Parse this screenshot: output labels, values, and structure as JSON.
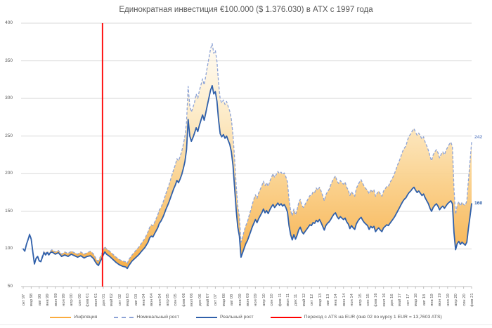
{
  "title": "Единократная инвестиция €100.000 ($ 1.376.030) в ATX с 1997 года",
  "colors": {
    "real_line": "#3060AA",
    "nominal_line": "#8DA3D6",
    "inflation_fill": "#F6A83B",
    "transition_line": "#FF0000",
    "gridline": "#D9D9D9",
    "axis_line": "#BFBFBF",
    "axis_text": "#595959",
    "end_label_nominal": "#7C97CE",
    "end_label_real": "#2E5FA8"
  },
  "chart_data": {
    "type": "line",
    "title": "Единократная инвестиция €100.000 ($ 1.376.030) в ATX с 1997 года",
    "x_unit": "months since Oct 1997",
    "x_range": [
      0,
      280
    ],
    "x_tick_step_months": 5,
    "x_tick_labels": [
      "окт 97",
      "мар 98",
      "авг 98",
      "янв 99",
      "июн 99",
      "ноя 99",
      "апр 00",
      "сен 00",
      "фев 01",
      "июл 01",
      "дек 01",
      "май 02",
      "окт 02",
      "мар 03",
      "авг 03",
      "янв 04",
      "июн 04",
      "ноя 04",
      "апр 05",
      "сен 05",
      "фев 06",
      "июл 06",
      "дек 06",
      "май 07",
      "окт 07",
      "мар 08",
      "авг 08",
      "янв 09",
      "июн 09",
      "ноя 09",
      "апр 10",
      "сен 10",
      "фев 11",
      "июл 11",
      "дек 11",
      "май 12",
      "окт 12",
      "мар 13",
      "авг 13",
      "янв 14",
      "июн 14",
      "ноя 14",
      "апр 15",
      "сен 15",
      "фев 16",
      "июл 16",
      "дек 16",
      "май 17",
      "окт 17",
      "мар 18",
      "авг 18",
      "янв 19",
      "июн 19",
      "ноя 19",
      "апр 20",
      "сен 20",
      "фев 21"
    ],
    "ylim": [
      50,
      400
    ],
    "y_ticks": [
      50,
      100,
      150,
      200,
      250,
      300,
      350,
      400
    ],
    "grid": "horizontal",
    "legend_position": "bottom",
    "series": [
      {
        "name": "Инфляция",
        "type": "area-between-nominal-and-real",
        "color": "#F6A83B",
        "style": "gradient-fill"
      },
      {
        "name": "Номинальный рост",
        "type": "line",
        "style": "dashed",
        "color": "#8DA3D6",
        "value_index": 2
      },
      {
        "name": "Реальный рост",
        "type": "line",
        "style": "solid",
        "color": "#3060AA",
        "value_index": 1
      },
      {
        "name": "Переход с ATS на EUR (янв 02 по курсу 1 EUR = 13,7603 ATS)",
        "type": "vertical-line",
        "color": "#FF0000",
        "x_month": 49.5
      }
    ],
    "points_format": [
      "month_index",
      "real_growth",
      "nominal_growth"
    ],
    "points": [
      [
        0,
        100,
        100
      ],
      [
        1,
        97,
        97
      ],
      [
        2,
        106,
        106
      ],
      [
        3,
        112,
        113
      ],
      [
        4,
        119,
        120
      ],
      [
        5,
        113,
        114
      ],
      [
        6,
        96,
        97
      ],
      [
        7,
        80,
        81
      ],
      [
        8,
        87,
        88
      ],
      [
        9,
        90,
        91
      ],
      [
        10,
        84,
        85
      ],
      [
        11,
        83,
        84
      ],
      [
        12,
        89,
        91
      ],
      [
        13,
        95,
        97
      ],
      [
        14,
        92,
        94
      ],
      [
        15,
        95,
        97
      ],
      [
        16,
        92,
        94
      ],
      [
        17,
        95,
        97
      ],
      [
        18,
        96,
        99
      ],
      [
        20,
        93,
        96
      ],
      [
        22,
        95,
        98
      ],
      [
        24,
        90,
        93
      ],
      [
        26,
        92,
        96
      ],
      [
        28,
        90,
        94
      ],
      [
        30,
        93,
        97
      ],
      [
        32,
        91,
        95
      ],
      [
        34,
        89,
        93
      ],
      [
        36,
        91,
        96
      ],
      [
        38,
        88,
        93
      ],
      [
        40,
        90,
        95
      ],
      [
        42,
        91,
        97
      ],
      [
        44,
        87,
        93
      ],
      [
        45,
        83,
        89
      ],
      [
        46,
        80,
        85
      ],
      [
        47,
        78,
        84
      ],
      [
        48,
        83,
        89
      ],
      [
        49,
        87,
        93
      ],
      [
        50,
        92,
        99
      ],
      [
        51,
        96,
        103
      ],
      [
        52,
        93,
        100
      ],
      [
        54,
        90,
        97
      ],
      [
        56,
        86,
        93
      ],
      [
        58,
        82,
        89
      ],
      [
        60,
        79,
        86
      ],
      [
        62,
        77,
        84
      ],
      [
        64,
        76,
        83
      ],
      [
        65,
        74,
        81
      ],
      [
        66,
        78,
        86
      ],
      [
        68,
        84,
        92
      ],
      [
        70,
        88,
        97
      ],
      [
        72,
        92,
        102
      ],
      [
        74,
        97,
        108
      ],
      [
        76,
        102,
        114
      ],
      [
        78,
        109,
        123
      ],
      [
        79,
        115,
        129
      ],
      [
        80,
        117,
        132
      ],
      [
        81,
        116,
        131
      ],
      [
        82,
        120,
        135
      ],
      [
        83,
        124,
        140
      ],
      [
        84,
        128,
        145
      ],
      [
        85,
        134,
        152
      ],
      [
        86,
        137,
        155
      ],
      [
        87,
        141,
        160
      ],
      [
        88,
        146,
        166
      ],
      [
        89,
        152,
        173
      ],
      [
        90,
        157,
        179
      ],
      [
        91,
        162,
        185
      ],
      [
        92,
        168,
        192
      ],
      [
        93,
        174,
        199
      ],
      [
        94,
        180,
        206
      ],
      [
        95,
        185,
        212
      ],
      [
        96,
        191,
        220
      ],
      [
        97,
        188,
        217
      ],
      [
        98,
        193,
        223
      ],
      [
        99,
        199,
        230
      ],
      [
        100,
        207,
        239
      ],
      [
        101,
        216,
        250
      ],
      [
        102,
        232,
        269
      ],
      [
        103,
        272,
        316
      ],
      [
        104,
        250,
        290
      ],
      [
        105,
        243,
        282
      ],
      [
        106,
        248,
        288
      ],
      [
        107,
        254,
        295
      ],
      [
        108,
        261,
        306
      ],
      [
        109,
        256,
        300
      ],
      [
        110,
        264,
        310
      ],
      [
        111,
        271,
        318
      ],
      [
        112,
        278,
        326
      ],
      [
        113,
        271,
        318
      ],
      [
        114,
        281,
        330
      ],
      [
        115,
        291,
        342
      ],
      [
        116,
        301,
        354
      ],
      [
        117,
        311,
        366
      ],
      [
        118,
        317,
        373
      ],
      [
        119,
        306,
        360
      ],
      [
        120,
        309,
        364
      ],
      [
        121,
        296,
        349
      ],
      [
        122,
        271,
        320
      ],
      [
        123,
        253,
        299
      ],
      [
        124,
        249,
        294
      ],
      [
        125,
        252,
        298
      ],
      [
        126,
        247,
        292
      ],
      [
        127,
        250,
        296
      ],
      [
        128,
        244,
        289
      ],
      [
        129,
        239,
        283
      ],
      [
        130,
        229,
        272
      ],
      [
        131,
        211,
        251
      ],
      [
        132,
        181,
        220
      ],
      [
        133,
        151,
        184
      ],
      [
        134,
        129,
        157
      ],
      [
        135,
        117,
        143
      ],
      [
        136,
        89,
        109
      ],
      [
        137,
        95,
        116
      ],
      [
        138,
        101,
        124
      ],
      [
        139,
        107,
        131
      ],
      [
        140,
        111,
        136
      ],
      [
        141,
        117,
        144
      ],
      [
        142,
        123,
        151
      ],
      [
        143,
        129,
        159
      ],
      [
        144,
        134,
        166
      ],
      [
        145,
        139,
        172
      ],
      [
        146,
        135,
        167
      ],
      [
        147,
        140,
        174
      ],
      [
        148,
        144,
        179
      ],
      [
        149,
        148,
        184
      ],
      [
        150,
        153,
        190
      ],
      [
        151,
        148,
        184
      ],
      [
        152,
        151,
        188
      ],
      [
        153,
        147,
        183
      ],
      [
        154,
        152,
        190
      ],
      [
        155,
        156,
        195
      ],
      [
        156,
        159,
        200
      ],
      [
        157,
        155,
        195
      ],
      [
        158,
        158,
        199
      ],
      [
        159,
        161,
        203
      ],
      [
        160,
        158,
        200
      ],
      [
        161,
        160,
        202
      ],
      [
        162,
        157,
        199
      ],
      [
        163,
        159,
        201
      ],
      [
        164,
        155,
        196
      ],
      [
        165,
        149,
        189
      ],
      [
        166,
        131,
        166
      ],
      [
        167,
        119,
        151
      ],
      [
        168,
        112,
        144
      ],
      [
        169,
        119,
        153
      ],
      [
        170,
        113,
        145
      ],
      [
        171,
        118,
        152
      ],
      [
        172,
        125,
        161
      ],
      [
        173,
        129,
        166
      ],
      [
        174,
        123,
        158
      ],
      [
        175,
        120,
        155
      ],
      [
        176,
        123,
        159
      ],
      [
        177,
        126,
        163
      ],
      [
        178,
        129,
        167
      ],
      [
        179,
        132,
        171
      ],
      [
        180,
        131,
        171
      ],
      [
        181,
        135,
        176
      ],
      [
        182,
        134,
        175
      ],
      [
        183,
        138,
        181
      ],
      [
        184,
        136,
        178
      ],
      [
        185,
        139,
        182
      ],
      [
        186,
        135,
        177
      ],
      [
        187,
        130,
        171
      ],
      [
        188,
        125,
        164
      ],
      [
        189,
        131,
        172
      ],
      [
        190,
        134,
        176
      ],
      [
        191,
        136,
        179
      ],
      [
        192,
        139,
        185
      ],
      [
        193,
        143,
        190
      ],
      [
        194,
        146,
        194
      ],
      [
        195,
        148,
        197
      ],
      [
        196,
        143,
        190
      ],
      [
        197,
        140,
        187
      ],
      [
        198,
        143,
        191
      ],
      [
        199,
        141,
        188
      ],
      [
        200,
        139,
        186
      ],
      [
        201,
        141,
        189
      ],
      [
        202,
        136,
        182
      ],
      [
        203,
        133,
        178
      ],
      [
        204,
        127,
        171
      ],
      [
        205,
        131,
        176
      ],
      [
        206,
        128,
        173
      ],
      [
        207,
        126,
        170
      ],
      [
        208,
        133,
        180
      ],
      [
        209,
        137,
        185
      ],
      [
        210,
        140,
        189
      ],
      [
        211,
        142,
        192
      ],
      [
        212,
        138,
        187
      ],
      [
        213,
        135,
        183
      ],
      [
        214,
        133,
        180
      ],
      [
        215,
        131,
        178
      ],
      [
        216,
        126,
        173
      ],
      [
        217,
        130,
        179
      ],
      [
        218,
        128,
        176
      ],
      [
        219,
        130,
        179
      ],
      [
        220,
        123,
        170
      ],
      [
        221,
        126,
        174
      ],
      [
        222,
        128,
        177
      ],
      [
        223,
        125,
        173
      ],
      [
        224,
        123,
        170
      ],
      [
        225,
        128,
        177
      ],
      [
        226,
        130,
        180
      ],
      [
        227,
        132,
        183
      ],
      [
        228,
        131,
        183
      ],
      [
        229,
        134,
        188
      ],
      [
        230,
        137,
        192
      ],
      [
        231,
        140,
        196
      ],
      [
        232,
        143,
        201
      ],
      [
        233,
        147,
        207
      ],
      [
        234,
        151,
        213
      ],
      [
        235,
        155,
        218
      ],
      [
        236,
        159,
        224
      ],
      [
        237,
        163,
        230
      ],
      [
        238,
        166,
        234
      ],
      [
        239,
        168,
        237
      ],
      [
        240,
        172,
        245
      ],
      [
        241,
        175,
        250
      ],
      [
        242,
        177,
        253
      ],
      [
        243,
        180,
        257
      ],
      [
        244,
        182,
        260
      ],
      [
        245,
        178,
        255
      ],
      [
        246,
        175,
        251
      ],
      [
        247,
        177,
        254
      ],
      [
        248,
        174,
        250
      ],
      [
        249,
        171,
        246
      ],
      [
        250,
        173,
        249
      ],
      [
        251,
        168,
        242
      ],
      [
        252,
        164,
        237
      ],
      [
        253,
        160,
        231
      ],
      [
        254,
        154,
        223
      ],
      [
        255,
        150,
        217
      ],
      [
        256,
        155,
        225
      ],
      [
        257,
        158,
        229
      ],
      [
        258,
        160,
        232
      ],
      [
        259,
        157,
        228
      ],
      [
        260,
        152,
        221
      ],
      [
        261,
        155,
        226
      ],
      [
        262,
        157,
        229
      ],
      [
        263,
        154,
        225
      ],
      [
        264,
        157,
        231
      ],
      [
        265,
        160,
        235
      ],
      [
        266,
        162,
        239
      ],
      [
        267,
        164,
        242
      ],
      [
        268,
        160,
        236
      ],
      [
        269,
        122,
        180
      ],
      [
        270,
        99,
        146
      ],
      [
        271,
        107,
        158
      ],
      [
        272,
        110,
        163
      ],
      [
        273,
        106,
        157
      ],
      [
        274,
        109,
        162
      ],
      [
        275,
        107,
        159
      ],
      [
        276,
        105,
        158
      ],
      [
        277,
        109,
        164
      ],
      [
        278,
        127,
        191
      ],
      [
        279,
        143,
        216
      ],
      [
        280,
        160,
        242
      ]
    ],
    "end_labels": [
      {
        "text": "242",
        "series": "Номинальный рост",
        "value": 242,
        "color": "#7C97CE"
      },
      {
        "text": "160",
        "series": "Реальный рост",
        "value": 160,
        "color": "#2E5FA8"
      }
    ]
  },
  "legend": {
    "items": [
      {
        "label": "Инфляция"
      },
      {
        "label": "Номинальный рост"
      },
      {
        "label": "Реальный рост"
      },
      {
        "label": "Переход с ATS на EUR (янв 02 по курсу 1 EUR = 13,7603 ATS)"
      }
    ]
  }
}
